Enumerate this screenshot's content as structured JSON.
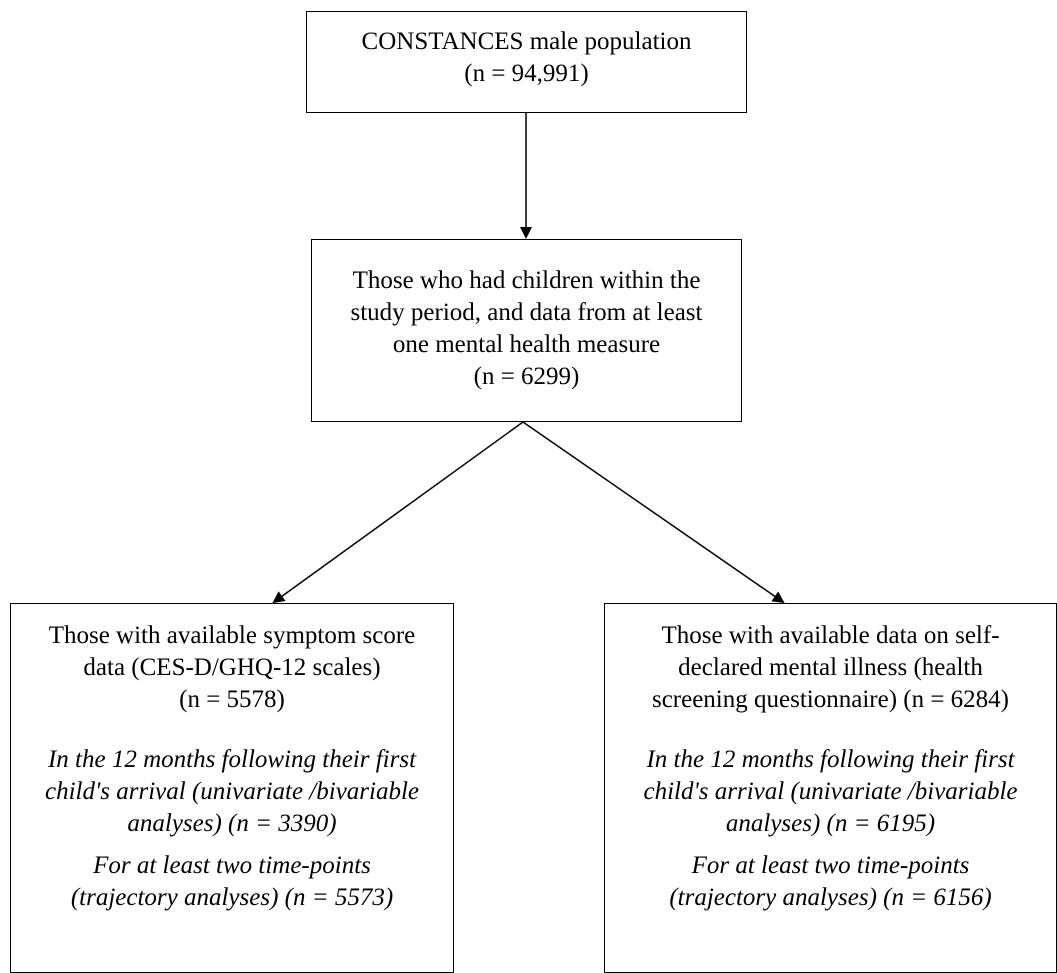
{
  "diagram": {
    "nodes": {
      "top": {
        "lines": [
          "CONSTANCES male population",
          "(n = 94,991)"
        ]
      },
      "middle": {
        "lines": [
          "Those who had children within the",
          "study period, and data from at least",
          "one mental health measure",
          "(n = 6299)"
        ]
      },
      "left": {
        "lines": [
          "Those with available symptom score",
          "data (CES-D/GHQ-12 scales)",
          "(n = 5578)"
        ],
        "sub1": [
          "In the 12 months following their first",
          "child's arrival (univariate /bivariable",
          "analyses) (n = 3390)"
        ],
        "sub2": [
          "For at least two time-points",
          "(trajectory analyses) (n = 5573)"
        ]
      },
      "right": {
        "lines": [
          "Those with available data on self-",
          "declared mental illness (health",
          "screening questionnaire) (n = 6284)"
        ],
        "sub1": [
          "In the 12 months following their first",
          "child's arrival (univariate /bivariable",
          "analyses) (n = 6195)"
        ],
        "sub2": [
          "For at least two time-points",
          "(trajectory analyses) (n = 6156)"
        ]
      }
    },
    "edges": [
      {
        "from": "top",
        "to": "middle"
      },
      {
        "from": "middle",
        "to": "left"
      },
      {
        "from": "middle",
        "to": "right"
      }
    ],
    "line_color": "#000000"
  }
}
